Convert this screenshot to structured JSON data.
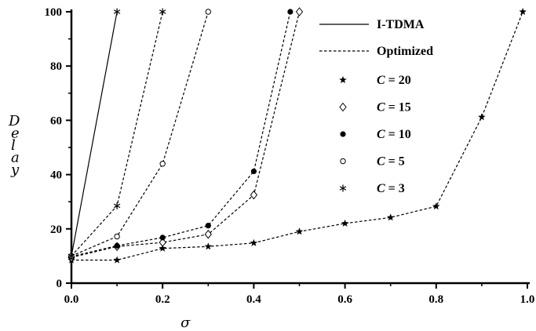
{
  "chart_data": {
    "type": "line",
    "title": "",
    "xlabel": "σ",
    "ylabel": "Delay",
    "xlim": [
      0,
      1.0
    ],
    "ylim": [
      0,
      100
    ],
    "xticks": [
      0,
      0.2,
      0.4,
      0.6,
      0.8,
      1.0
    ],
    "xtick_labels": [
      "0.0",
      "0.2",
      "0.4",
      "0.6",
      "0.8",
      "1.0"
    ],
    "yticks": [
      0,
      20,
      40,
      60,
      80,
      100
    ],
    "ytick_labels": [
      "0",
      "20",
      "40",
      "60",
      "80",
      "100"
    ],
    "grid": false,
    "legend_position": "top-right",
    "line_legend": [
      {
        "label": "I-TDMA",
        "style": "solid"
      },
      {
        "label": "Optimized",
        "style": "dashed"
      }
    ],
    "marker_legend": [
      {
        "marker": "star",
        "param": "C",
        "value": "20"
      },
      {
        "marker": "diamond",
        "param": "C",
        "value": "15"
      },
      {
        "marker": "filled-circle",
        "param": "C",
        "value": "10"
      },
      {
        "marker": "open-circle",
        "param": "C",
        "value": "5"
      },
      {
        "marker": "asterisk",
        "param": "C",
        "value": "3"
      }
    ],
    "series": [
      {
        "marker": "star",
        "style": "dashed",
        "points": [
          [
            0.0,
            8.5
          ],
          [
            0.1,
            8.5
          ],
          [
            0.2,
            12.8
          ],
          [
            0.3,
            13.5
          ],
          [
            0.4,
            14.8
          ],
          [
            0.5,
            19.0
          ],
          [
            0.6,
            22.0
          ],
          [
            0.7,
            24.2
          ],
          [
            0.8,
            28.3
          ],
          [
            0.9,
            61.2
          ],
          [
            0.99,
            100.0
          ]
        ]
      },
      {
        "marker": "diamond",
        "style": "dashed",
        "points": [
          [
            0.0,
            9.5
          ],
          [
            0.1,
            13.5
          ],
          [
            0.2,
            15.0
          ],
          [
            0.3,
            18.0
          ],
          [
            0.4,
            32.5
          ],
          [
            0.5,
            100.0
          ]
        ]
      },
      {
        "marker": "filled-circle",
        "style": "dashed",
        "points": [
          [
            0.0,
            9.8
          ],
          [
            0.1,
            13.8
          ],
          [
            0.2,
            16.8
          ],
          [
            0.3,
            21.2
          ],
          [
            0.4,
            41.2
          ],
          [
            0.48,
            100.0
          ]
        ]
      },
      {
        "marker": "open-circle",
        "style": "dashed",
        "points": [
          [
            0.0,
            10.0
          ],
          [
            0.1,
            17.2
          ],
          [
            0.2,
            44.0
          ],
          [
            0.3,
            100.0
          ]
        ]
      },
      {
        "marker": "asterisk",
        "style": "dashed",
        "points": [
          [
            0.0,
            10.0
          ],
          [
            0.1,
            28.5
          ],
          [
            0.2,
            100.0
          ]
        ]
      },
      {
        "marker": "asterisk",
        "style": "solid",
        "points": [
          [
            0.0,
            10.0
          ],
          [
            0.1,
            100.0
          ]
        ]
      }
    ]
  }
}
